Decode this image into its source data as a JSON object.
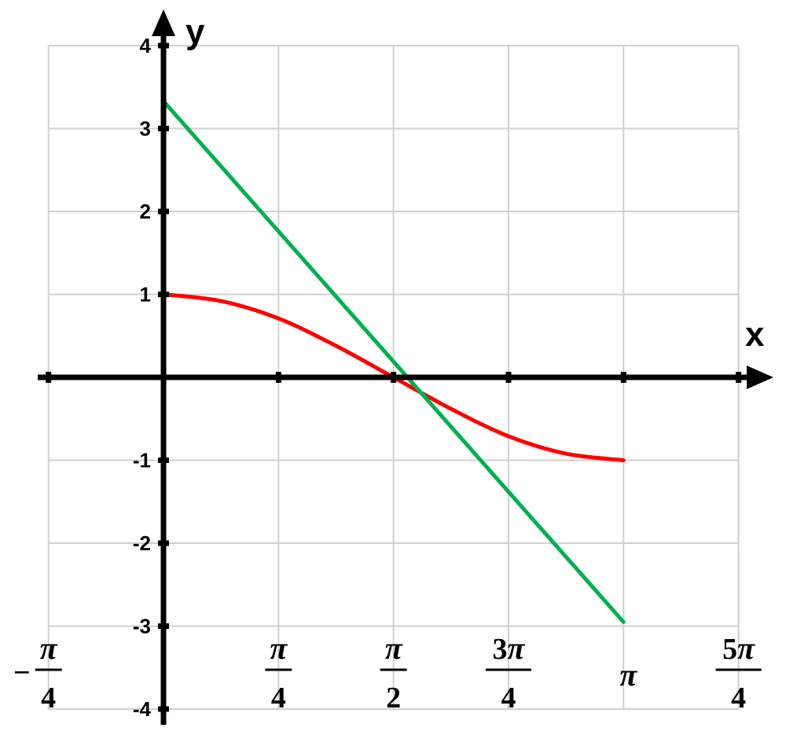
{
  "chart_data": {
    "type": "line",
    "xlabel": "x",
    "ylabel": "y",
    "xlim": [
      -0.7854,
      3.927
    ],
    "ylim": [
      -4,
      4
    ],
    "grid": true,
    "x_ticks": [
      {
        "value": -0.7854,
        "sign": "−",
        "num": "π",
        "den": "4"
      },
      {
        "value": 0.7854,
        "sign": "",
        "num": "π",
        "den": "4"
      },
      {
        "value": 1.5708,
        "sign": "",
        "num": "π",
        "den": "2"
      },
      {
        "value": 2.3562,
        "sign": "",
        "num": "3π",
        "den": "4"
      },
      {
        "value": 3.1416,
        "sign": "",
        "num": "π",
        "den": ""
      },
      {
        "value": 3.927,
        "sign": "",
        "num": "5π",
        "den": "4"
      }
    ],
    "y_ticks": [
      {
        "value": 4,
        "label": "4"
      },
      {
        "value": 3,
        "label": "3"
      },
      {
        "value": 2,
        "label": "2"
      },
      {
        "value": 1,
        "label": "1"
      },
      {
        "value": -1,
        "label": "-1"
      },
      {
        "value": -2,
        "label": "-2"
      },
      {
        "value": -3,
        "label": "-3"
      },
      {
        "value": -4,
        "label": "-4"
      }
    ],
    "series": [
      {
        "color": "#ff0000",
        "x": [
          0,
          0.3927,
          0.7854,
          1.1781,
          1.5708,
          1.9635,
          2.3562,
          2.7489,
          3.1416
        ],
        "y": [
          1,
          0.92,
          0.71,
          0.38,
          0,
          -0.38,
          -0.71,
          -0.92,
          -1
        ]
      },
      {
        "color": "#00b050",
        "x": [
          0,
          3.1416
        ],
        "y": [
          3.33,
          -2.95
        ]
      }
    ]
  }
}
